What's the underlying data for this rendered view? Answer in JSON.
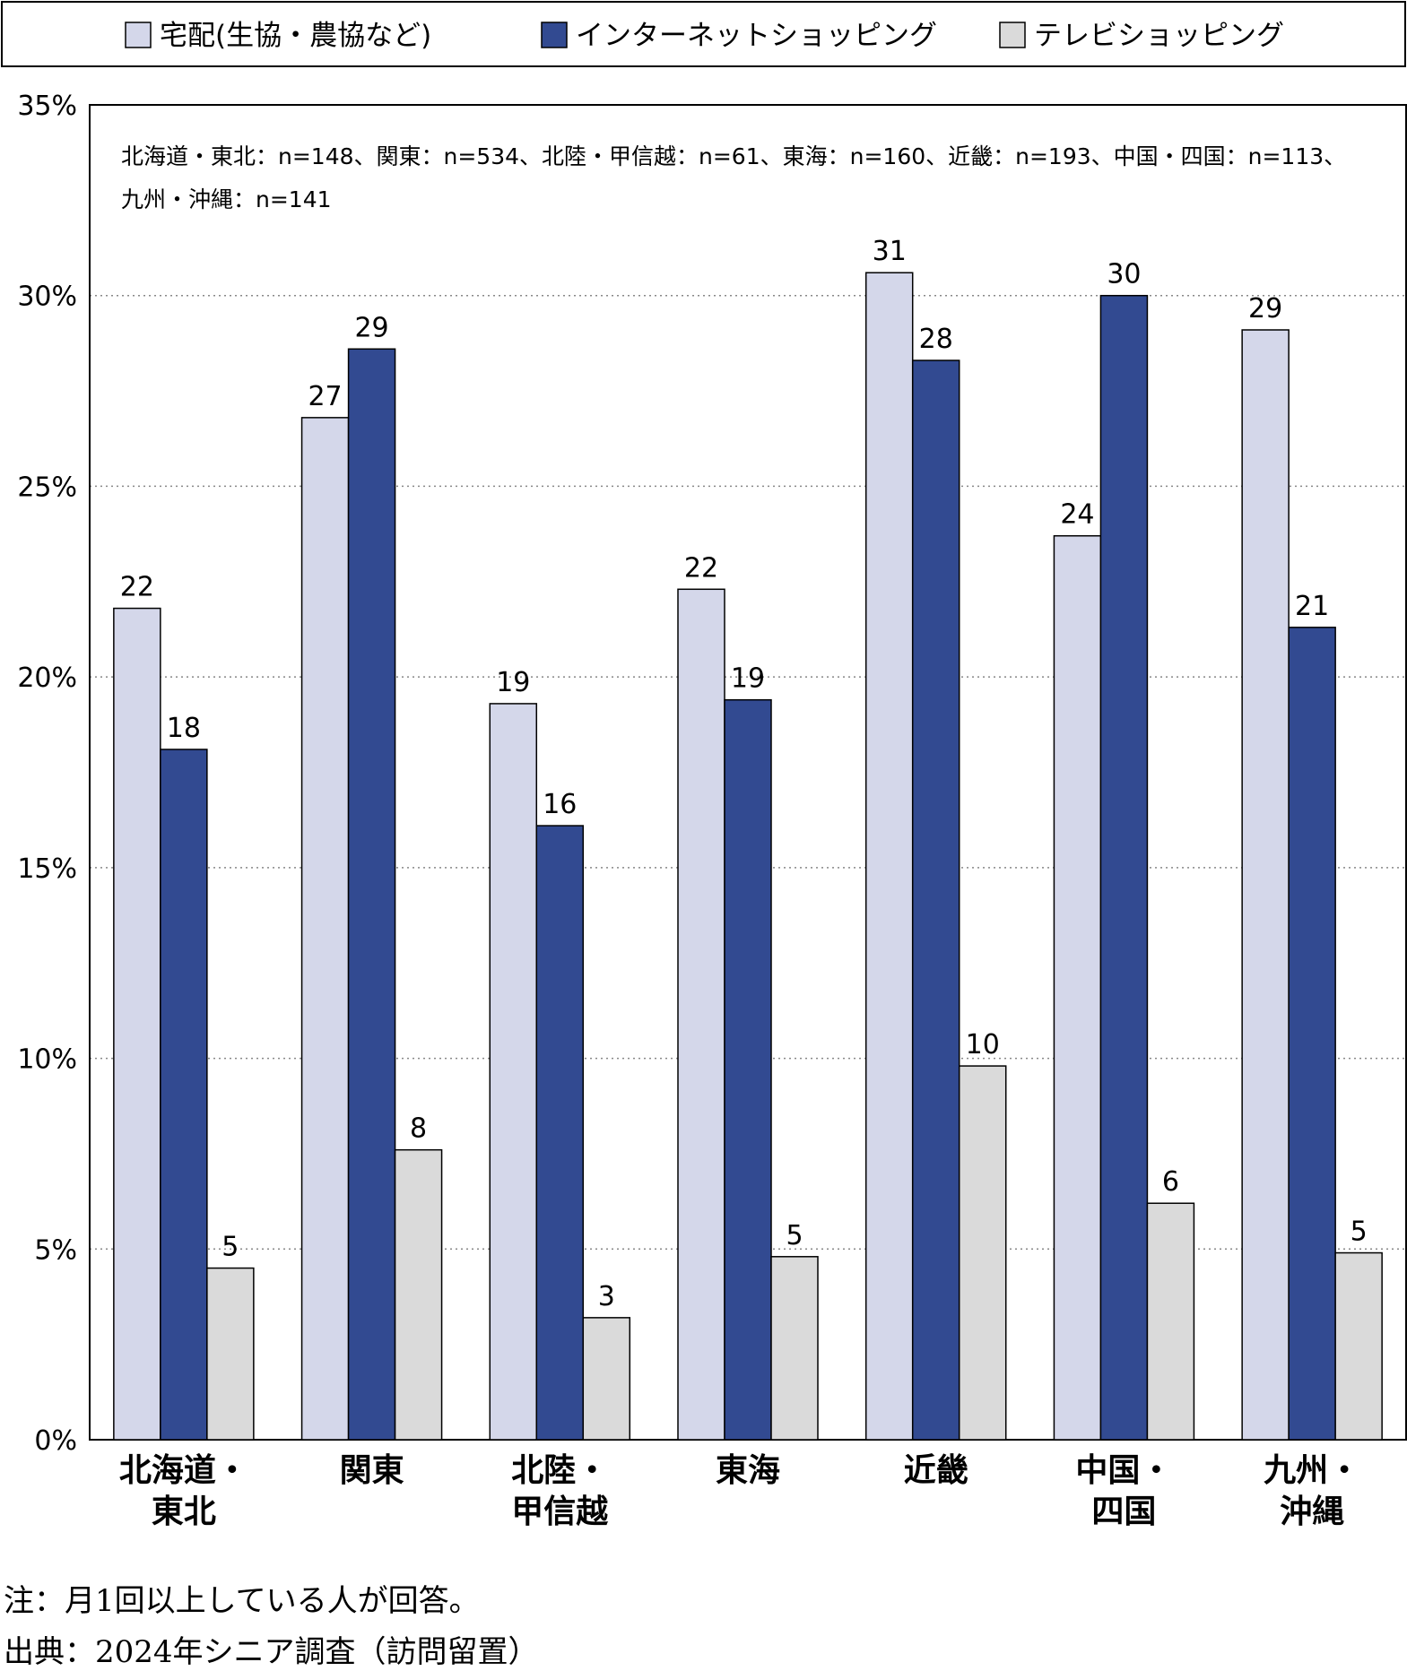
{
  "chart_data": {
    "type": "bar",
    "title": "",
    "xlabel": "",
    "ylabel": "",
    "ylim": [
      0,
      35
    ],
    "yticks": [
      0,
      5,
      10,
      15,
      20,
      25,
      30,
      35
    ],
    "ytick_labels": [
      "0%",
      "5%",
      "10%",
      "15%",
      "20%",
      "25%",
      "30%",
      "35%"
    ],
    "grid": "horizontal dotted",
    "legend_position": "top",
    "categories": [
      [
        "北海道・",
        "東北"
      ],
      [
        "関東"
      ],
      [
        "北陸・",
        "甲信越"
      ],
      [
        "東海"
      ],
      [
        "近畿"
      ],
      [
        "中国・",
        "四国"
      ],
      [
        "九州・",
        "沖縄"
      ]
    ],
    "series": [
      {
        "name": "宅配(生協・農協など)",
        "color": "#d4d7ea",
        "values": [
          21.8,
          26.8,
          19.3,
          22.3,
          30.6,
          23.7,
          29.1
        ],
        "labels": [
          "22",
          "27",
          "19",
          "22",
          "31",
          "24",
          "29"
        ]
      },
      {
        "name": "インターネットショッピング",
        "color": "#324a91",
        "values": [
          18.1,
          28.6,
          16.1,
          19.4,
          28.3,
          30.0,
          21.3
        ],
        "labels": [
          "18",
          "29",
          "16",
          "19",
          "28",
          "30",
          "21"
        ]
      },
      {
        "name": "テレビショッピング",
        "color": "#dadada",
        "values": [
          4.5,
          7.6,
          3.2,
          4.8,
          9.8,
          6.2,
          4.9
        ],
        "labels": [
          "5",
          "8",
          "3",
          "5",
          "10",
          "6",
          "5"
        ]
      }
    ],
    "annotation_lines": [
      "北海道・東北：n=148、関東：n=534、北陸・甲信越：n=61、東海：n=160、近畿：n=193、中国・四国：n=113、",
      "九州・沖縄：n=141"
    ]
  },
  "footer": {
    "note": "注：月1回以上している人が回答。",
    "source": "出典：2024年シニア調査（訪問留置）"
  }
}
